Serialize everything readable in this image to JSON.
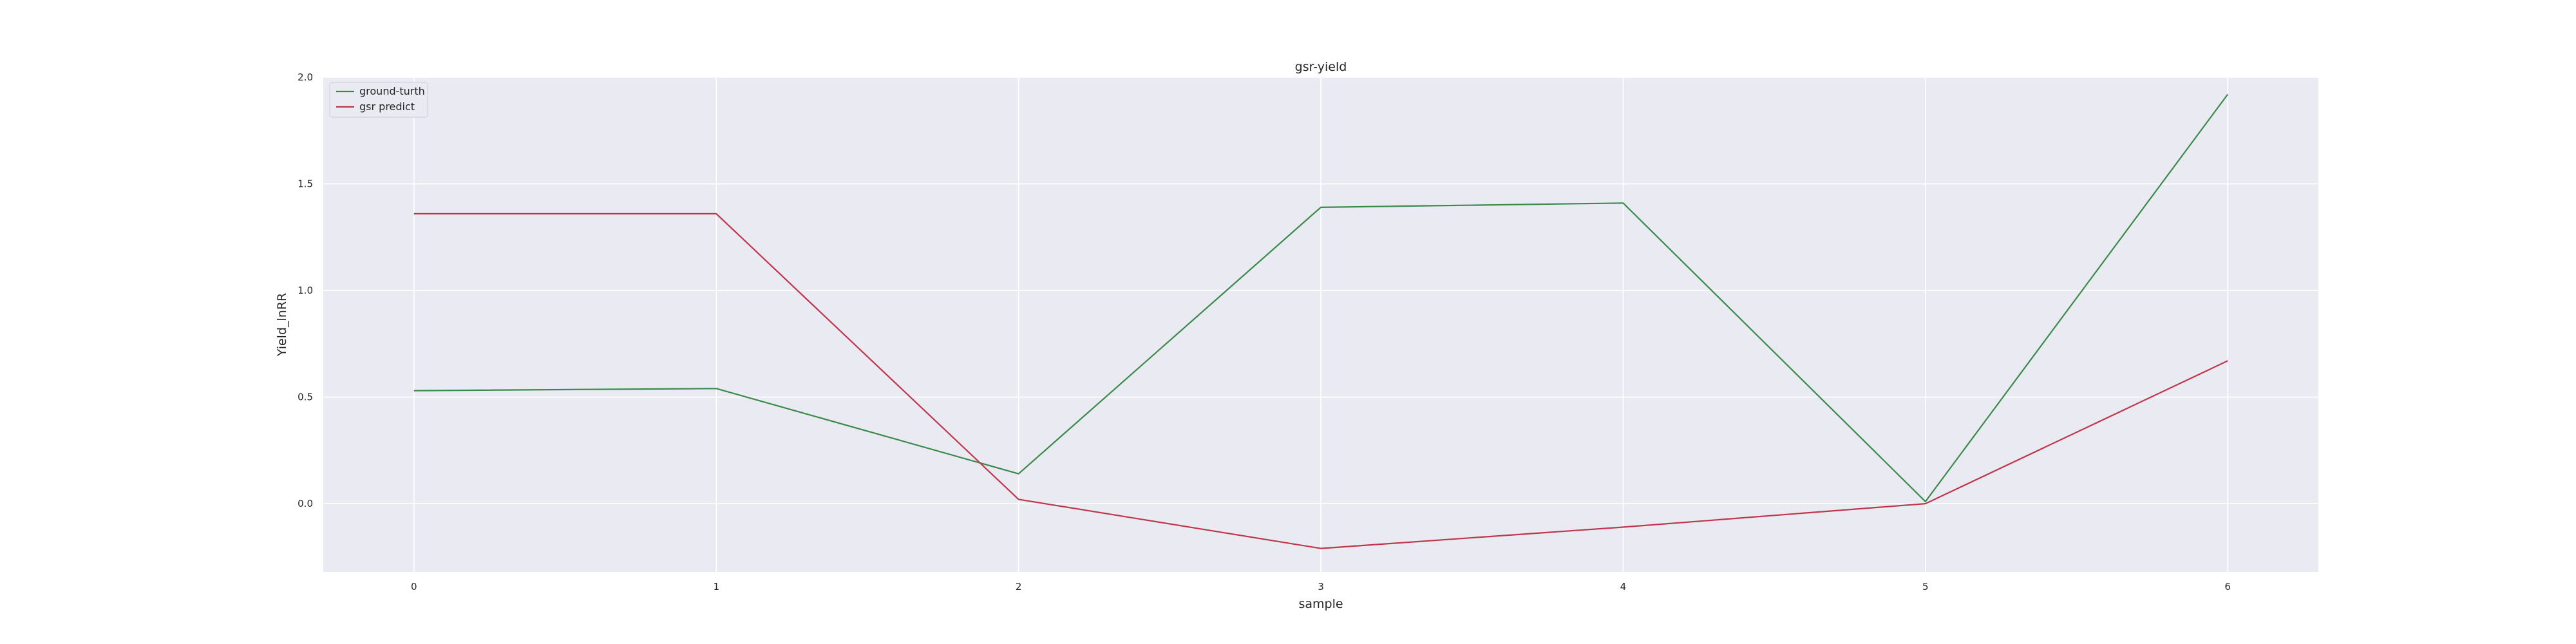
{
  "chart_data": {
    "type": "line",
    "title": "gsr-yield",
    "xlabel": "sample",
    "ylabel": "Yield_lnRR",
    "x": [
      0,
      1,
      2,
      3,
      4,
      5,
      6
    ],
    "xticks": [
      "0",
      "1",
      "2",
      "3",
      "4",
      "5",
      "6"
    ],
    "yticks": [
      "2.0",
      "1.5",
      "1.0",
      "0.5",
      "0.0"
    ],
    "ylim": [
      -0.32,
      2.0
    ],
    "xlim": [
      -0.3,
      6.3
    ],
    "grid": true,
    "background": "#eaeaf2",
    "legend_position": "top-left",
    "series": [
      {
        "name": "ground-turth",
        "color": "#3a8a4a",
        "values": [
          0.53,
          0.54,
          0.14,
          1.39,
          1.41,
          0.01,
          1.92
        ]
      },
      {
        "name": "gsr predict",
        "color": "#c0364b",
        "values": [
          1.36,
          1.36,
          0.02,
          -0.21,
          -0.11,
          0.0,
          0.67
        ]
      }
    ]
  }
}
